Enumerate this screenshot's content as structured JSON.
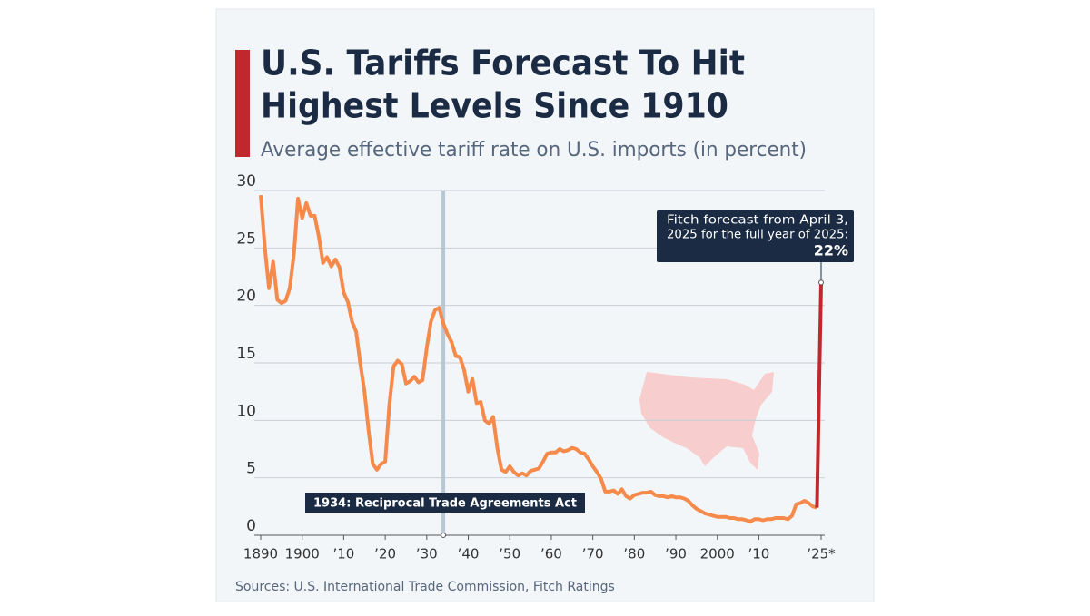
{
  "chart_data": {
    "type": "line",
    "title": [
      "U.S. Tariffs Forecast To Hit",
      "Highest Levels Since 1910"
    ],
    "subtitle": "Average effective tariff rate on U.S. imports (in percent)",
    "source": "Sources: U.S. International Trade Commission, Fitch Ratings",
    "x": [
      1890,
      1891,
      1892,
      1893,
      1894,
      1895,
      1896,
      1897,
      1898,
      1899,
      1900,
      1901,
      1902,
      1903,
      1904,
      1905,
      1906,
      1907,
      1908,
      1909,
      1910,
      1911,
      1912,
      1913,
      1914,
      1915,
      1916,
      1917,
      1918,
      1919,
      1920,
      1921,
      1922,
      1923,
      1924,
      1925,
      1926,
      1927,
      1928,
      1929,
      1930,
      1931,
      1932,
      1933,
      1934,
      1935,
      1936,
      1937,
      1938,
      1939,
      1940,
      1941,
      1942,
      1943,
      1944,
      1945,
      1946,
      1947,
      1948,
      1949,
      1950,
      1951,
      1952,
      1953,
      1954,
      1955,
      1956,
      1957,
      1958,
      1959,
      1960,
      1961,
      1962,
      1963,
      1964,
      1965,
      1966,
      1967,
      1968,
      1969,
      1970,
      1971,
      1972,
      1973,
      1974,
      1975,
      1976,
      1977,
      1978,
      1979,
      1980,
      1981,
      1982,
      1983,
      1984,
      1985,
      1986,
      1987,
      1988,
      1989,
      1990,
      1991,
      1992,
      1993,
      1994,
      1995,
      1996,
      1997,
      1998,
      1999,
      2000,
      2001,
      2002,
      2003,
      2004,
      2005,
      2006,
      2007,
      2008,
      2009,
      2010,
      2011,
      2012,
      2013,
      2014,
      2015,
      2016,
      2017,
      2018,
      2019,
      2020,
      2021,
      2022,
      2023,
      2024,
      2025
    ],
    "series": [
      {
        "color": "#f58a4b",
        "values": [
          29.6,
          25.0,
          21.5,
          23.8,
          20.5,
          20.2,
          20.4,
          21.5,
          24.5,
          29.3,
          27.6,
          28.9,
          27.8,
          27.8,
          26.0,
          23.7,
          24.2,
          23.4,
          24.0,
          23.3,
          21.1,
          20.3,
          18.6,
          17.7,
          14.9,
          12.5,
          9.1,
          6.2,
          5.7,
          6.2,
          6.4,
          11.4,
          14.7,
          15.2,
          14.9,
          13.2,
          13.4,
          13.8,
          13.3,
          13.5,
          16.3,
          18.6,
          19.6,
          19.8,
          18.4,
          17.5,
          16.8,
          15.6,
          15.5,
          14.4,
          12.5,
          13.6,
          11.5,
          11.6,
          10.0,
          9.7,
          10.3,
          7.6,
          5.7,
          5.5,
          6.0,
          5.5,
          5.2,
          5.4,
          5.2,
          5.6,
          5.7,
          5.8,
          6.4,
          7.1,
          7.2,
          7.2,
          7.5,
          7.3,
          7.4,
          7.6,
          7.5,
          7.2,
          7.1,
          6.6,
          6.0,
          5.5,
          4.9,
          3.8,
          3.8,
          3.9,
          3.6,
          4.0,
          3.4,
          3.2,
          3.5,
          3.6,
          3.7,
          3.7,
          3.8,
          3.5,
          3.4,
          3.4,
          3.3,
          3.4,
          3.3,
          3.3,
          3.2,
          3.0,
          2.6,
          2.3,
          2.1,
          1.9,
          1.8,
          1.7,
          1.6,
          1.6,
          1.6,
          1.5,
          1.5,
          1.4,
          1.4,
          1.3,
          1.2,
          1.4,
          1.4,
          1.3,
          1.4,
          1.4,
          1.5,
          1.5,
          1.5,
          1.4,
          1.7,
          2.7,
          2.8,
          3.0,
          2.8,
          2.5,
          2.4,
          null
        ]
      },
      {
        "color": "#c0282d",
        "x": [
          2024,
          2025
        ],
        "values": [
          2.4,
          22
        ],
        "value_labels": [
          null,
          "22%"
        ],
        "annotation": [
          "Fitch forecast from April 3,",
          "2025 for the full year of 2025:"
        ]
      }
    ],
    "xlim": [
      1890,
      2025
    ],
    "xticks": [
      1890,
      1900,
      {
        "value": 1910,
        "label": "’10"
      },
      {
        "value": 1920,
        "label": "’20"
      },
      {
        "value": 1930,
        "label": "’30"
      },
      {
        "value": 1940,
        "label": "’40"
      },
      {
        "value": 1950,
        "label": "’50"
      },
      {
        "value": 1960,
        "label": "’60"
      },
      {
        "value": 1970,
        "label": "’70"
      },
      {
        "value": 1980,
        "label": "’80"
      },
      {
        "value": 1990,
        "label": "’90"
      },
      2000,
      {
        "value": 2010,
        "label": "’10"
      },
      {
        "value": 2025,
        "label": "’25*"
      }
    ],
    "ylim": [
      0,
      30
    ],
    "yticks": [
      0,
      5,
      10,
      15,
      20,
      25,
      30
    ],
    "grid": true,
    "annotations": [
      {
        "x": 1934,
        "text": "1934: Reciprocal Trade Agreements Act"
      }
    ]
  }
}
